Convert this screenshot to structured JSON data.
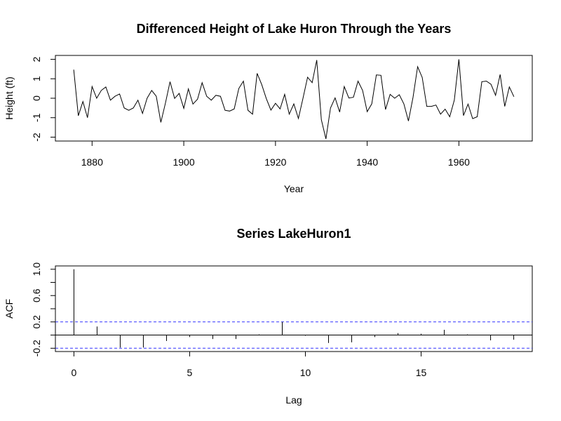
{
  "chart_data": [
    {
      "type": "line",
      "title": "Differenced Height of Lake Huron Through the Years",
      "xlabel": "Year",
      "ylabel": "Height (ft)",
      "xlim": [
        1872,
        1976
      ],
      "ylim": [
        -2.2,
        2.2
      ],
      "x_ticks": [
        1880,
        1900,
        1920,
        1940,
        1960
      ],
      "y_ticks": [
        -2,
        -1,
        0,
        1,
        2
      ],
      "x_start": 1876,
      "x_step": 1,
      "values": [
        1.47,
        -0.9,
        -0.17,
        -1.0,
        0.6,
        0.0,
        0.4,
        0.58,
        -0.1,
        0.1,
        0.22,
        -0.5,
        -0.62,
        -0.5,
        -0.1,
        -0.78,
        0.0,
        0.4,
        0.1,
        -1.24,
        -0.25,
        0.85,
        -0.01,
        0.25,
        -0.52,
        0.48,
        -0.3,
        -0.05,
        0.8,
        0.1,
        -0.1,
        0.15,
        0.1,
        -0.62,
        -0.66,
        -0.55,
        0.5,
        0.88,
        -0.62,
        -0.82,
        1.28,
        0.7,
        -0.02,
        -0.61,
        -0.26,
        -0.55,
        0.2,
        -0.82,
        -0.29,
        -1.04,
        0.0,
        1.08,
        0.8,
        1.96,
        -1.1,
        -2.09,
        -0.5,
        0.02,
        -0.71,
        0.6,
        0.01,
        0.05,
        0.88,
        0.4,
        -0.69,
        -0.29,
        1.2,
        1.18,
        -0.58,
        0.2,
        0.0,
        0.18,
        -0.29,
        -1.17,
        0.05,
        1.62,
        1.07,
        -0.42,
        -0.42,
        -0.35,
        -0.82,
        -0.56,
        -0.95,
        -0.1,
        2.0,
        -0.89,
        -0.3,
        -1.05,
        -0.95,
        0.85,
        0.88,
        0.72,
        0.15,
        1.22,
        -0.42,
        0.58,
        0.08
      ]
    },
    {
      "type": "bar",
      "title": "Series  LakeHuron1",
      "xlabel": "Lag",
      "ylabel": "ACF",
      "xlim": [
        -0.8,
        19.8
      ],
      "ylim": [
        -0.25,
        1.05
      ],
      "x_ticks": [
        0,
        5,
        10,
        15
      ],
      "y_ticks": [
        -0.2,
        0.2,
        0.6,
        1.0
      ],
      "y_tick_labels": [
        "-0.2",
        "0.2",
        "0.6",
        "1.0"
      ],
      "lags": [
        0,
        1,
        2,
        3,
        4,
        5,
        6,
        7,
        8,
        9,
        10,
        11,
        12,
        13,
        14,
        15,
        16,
        17,
        18,
        19
      ],
      "values": [
        1.0,
        0.13,
        -0.19,
        -0.19,
        -0.09,
        -0.03,
        -0.06,
        -0.06,
        0.01,
        0.2,
        -0.01,
        -0.12,
        -0.11,
        -0.03,
        0.03,
        0.02,
        0.08,
        0.01,
        -0.08,
        -0.07
      ],
      "confidence_bound": 0.2,
      "colors": {
        "line": "#000000",
        "confidence": "#3333ff"
      }
    }
  ]
}
